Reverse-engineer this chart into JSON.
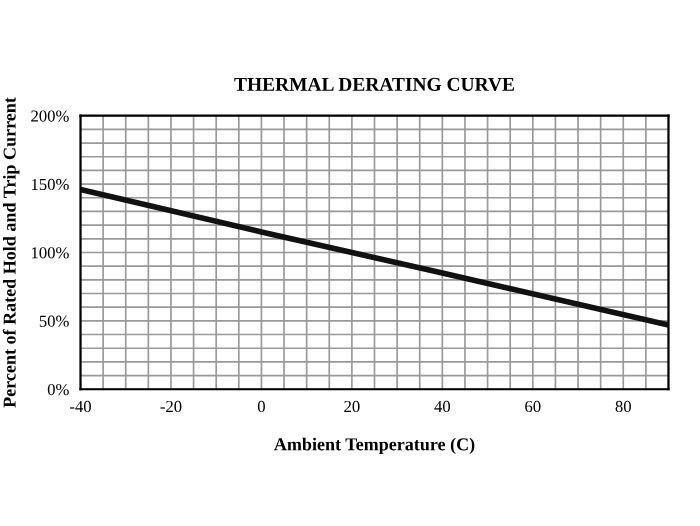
{
  "chart_data": {
    "type": "line",
    "title": "THERMAL DERATING CURVE",
    "xlabel": "Ambient Temperature (C)",
    "ylabel": "Percent of Rated Hold and Trip Current",
    "x": [
      -40,
      0,
      20,
      40,
      90
    ],
    "series": [
      {
        "color": "#111111",
        "values": [
          146,
          115,
          100,
          85,
          47
        ]
      }
    ],
    "xlim": [
      -40,
      90
    ],
    "ylim": [
      0,
      200
    ],
    "xticks": [
      -40,
      {
        "value": -35,
        "label": null
      },
      {
        "value": -30,
        "label": null
      },
      {
        "value": -25,
        "label": null
      },
      -20,
      {
        "value": -15,
        "label": null
      },
      {
        "value": -10,
        "label": null
      },
      {
        "value": -5,
        "label": null
      },
      0,
      {
        "value": 5,
        "label": null
      },
      {
        "value": 10,
        "label": null
      },
      {
        "value": 15,
        "label": null
      },
      20,
      {
        "value": 25,
        "label": null
      },
      {
        "value": 30,
        "label": null
      },
      {
        "value": 35,
        "label": null
      },
      40,
      {
        "value": 45,
        "label": null
      },
      {
        "value": 50,
        "label": null
      },
      {
        "value": 55,
        "label": null
      },
      60,
      {
        "value": 65,
        "label": null
      },
      {
        "value": 70,
        "label": null
      },
      {
        "value": 75,
        "label": null
      },
      80,
      {
        "value": 85,
        "label": null
      },
      {
        "value": 90,
        "label": null
      }
    ],
    "yticks": [
      {
        "value": 0,
        "label": "0%"
      },
      {
        "value": 10,
        "label": null
      },
      {
        "value": 20,
        "label": null
      },
      {
        "value": 30,
        "label": null
      },
      {
        "value": 40,
        "label": null
      },
      {
        "value": 50,
        "label": "50%"
      },
      {
        "value": 60,
        "label": null
      },
      {
        "value": 70,
        "label": null
      },
      {
        "value": 80,
        "label": null
      },
      {
        "value": 90,
        "label": null
      },
      {
        "value": 100,
        "label": "100%"
      },
      {
        "value": 110,
        "label": null
      },
      {
        "value": 120,
        "label": null
      },
      {
        "value": 130,
        "label": null
      },
      {
        "value": 140,
        "label": null
      },
      {
        "value": 150,
        "label": "150%"
      },
      {
        "value": 160,
        "label": null
      },
      {
        "value": 170,
        "label": null
      },
      {
        "value": 180,
        "label": null
      },
      {
        "value": 190,
        "label": null
      },
      {
        "value": 200,
        "label": "200%"
      }
    ],
    "grid": true,
    "marker": "none",
    "line_style": "solid",
    "legend": false
  }
}
